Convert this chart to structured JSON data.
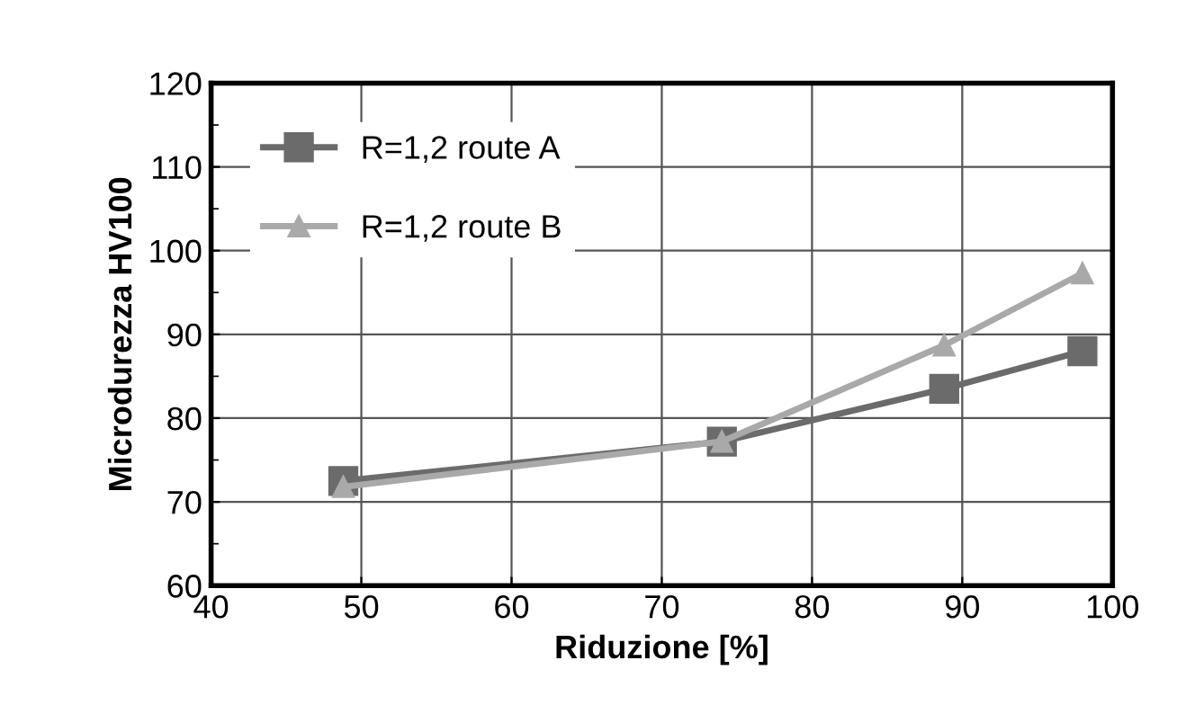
{
  "chart_data": {
    "type": "line",
    "xlabel": "Riduzione [%]",
    "ylabel": "Microdurezza HV100",
    "x": [
      48.8,
      74,
      88.8,
      98
    ],
    "series": [
      {
        "name": "R=1,2 route A",
        "color": "#6b6b6b",
        "values": [
          72.5,
          77.2,
          83.5,
          88
        ],
        "marker": "square"
      },
      {
        "name": "R=1,2 route B",
        "color": "#a9a9a9",
        "values": [
          71.8,
          77.2,
          88.7,
          97.3
        ],
        "marker": "triangle"
      }
    ],
    "xlim": [
      40,
      100
    ],
    "xticks": [
      40,
      50,
      60,
      70,
      80,
      90,
      100
    ],
    "ylim": [
      60,
      120
    ],
    "yticks": [
      60,
      70,
      80,
      90,
      100,
      110,
      120
    ],
    "grid": true,
    "legend": "top left",
    "line_style": "solid"
  }
}
